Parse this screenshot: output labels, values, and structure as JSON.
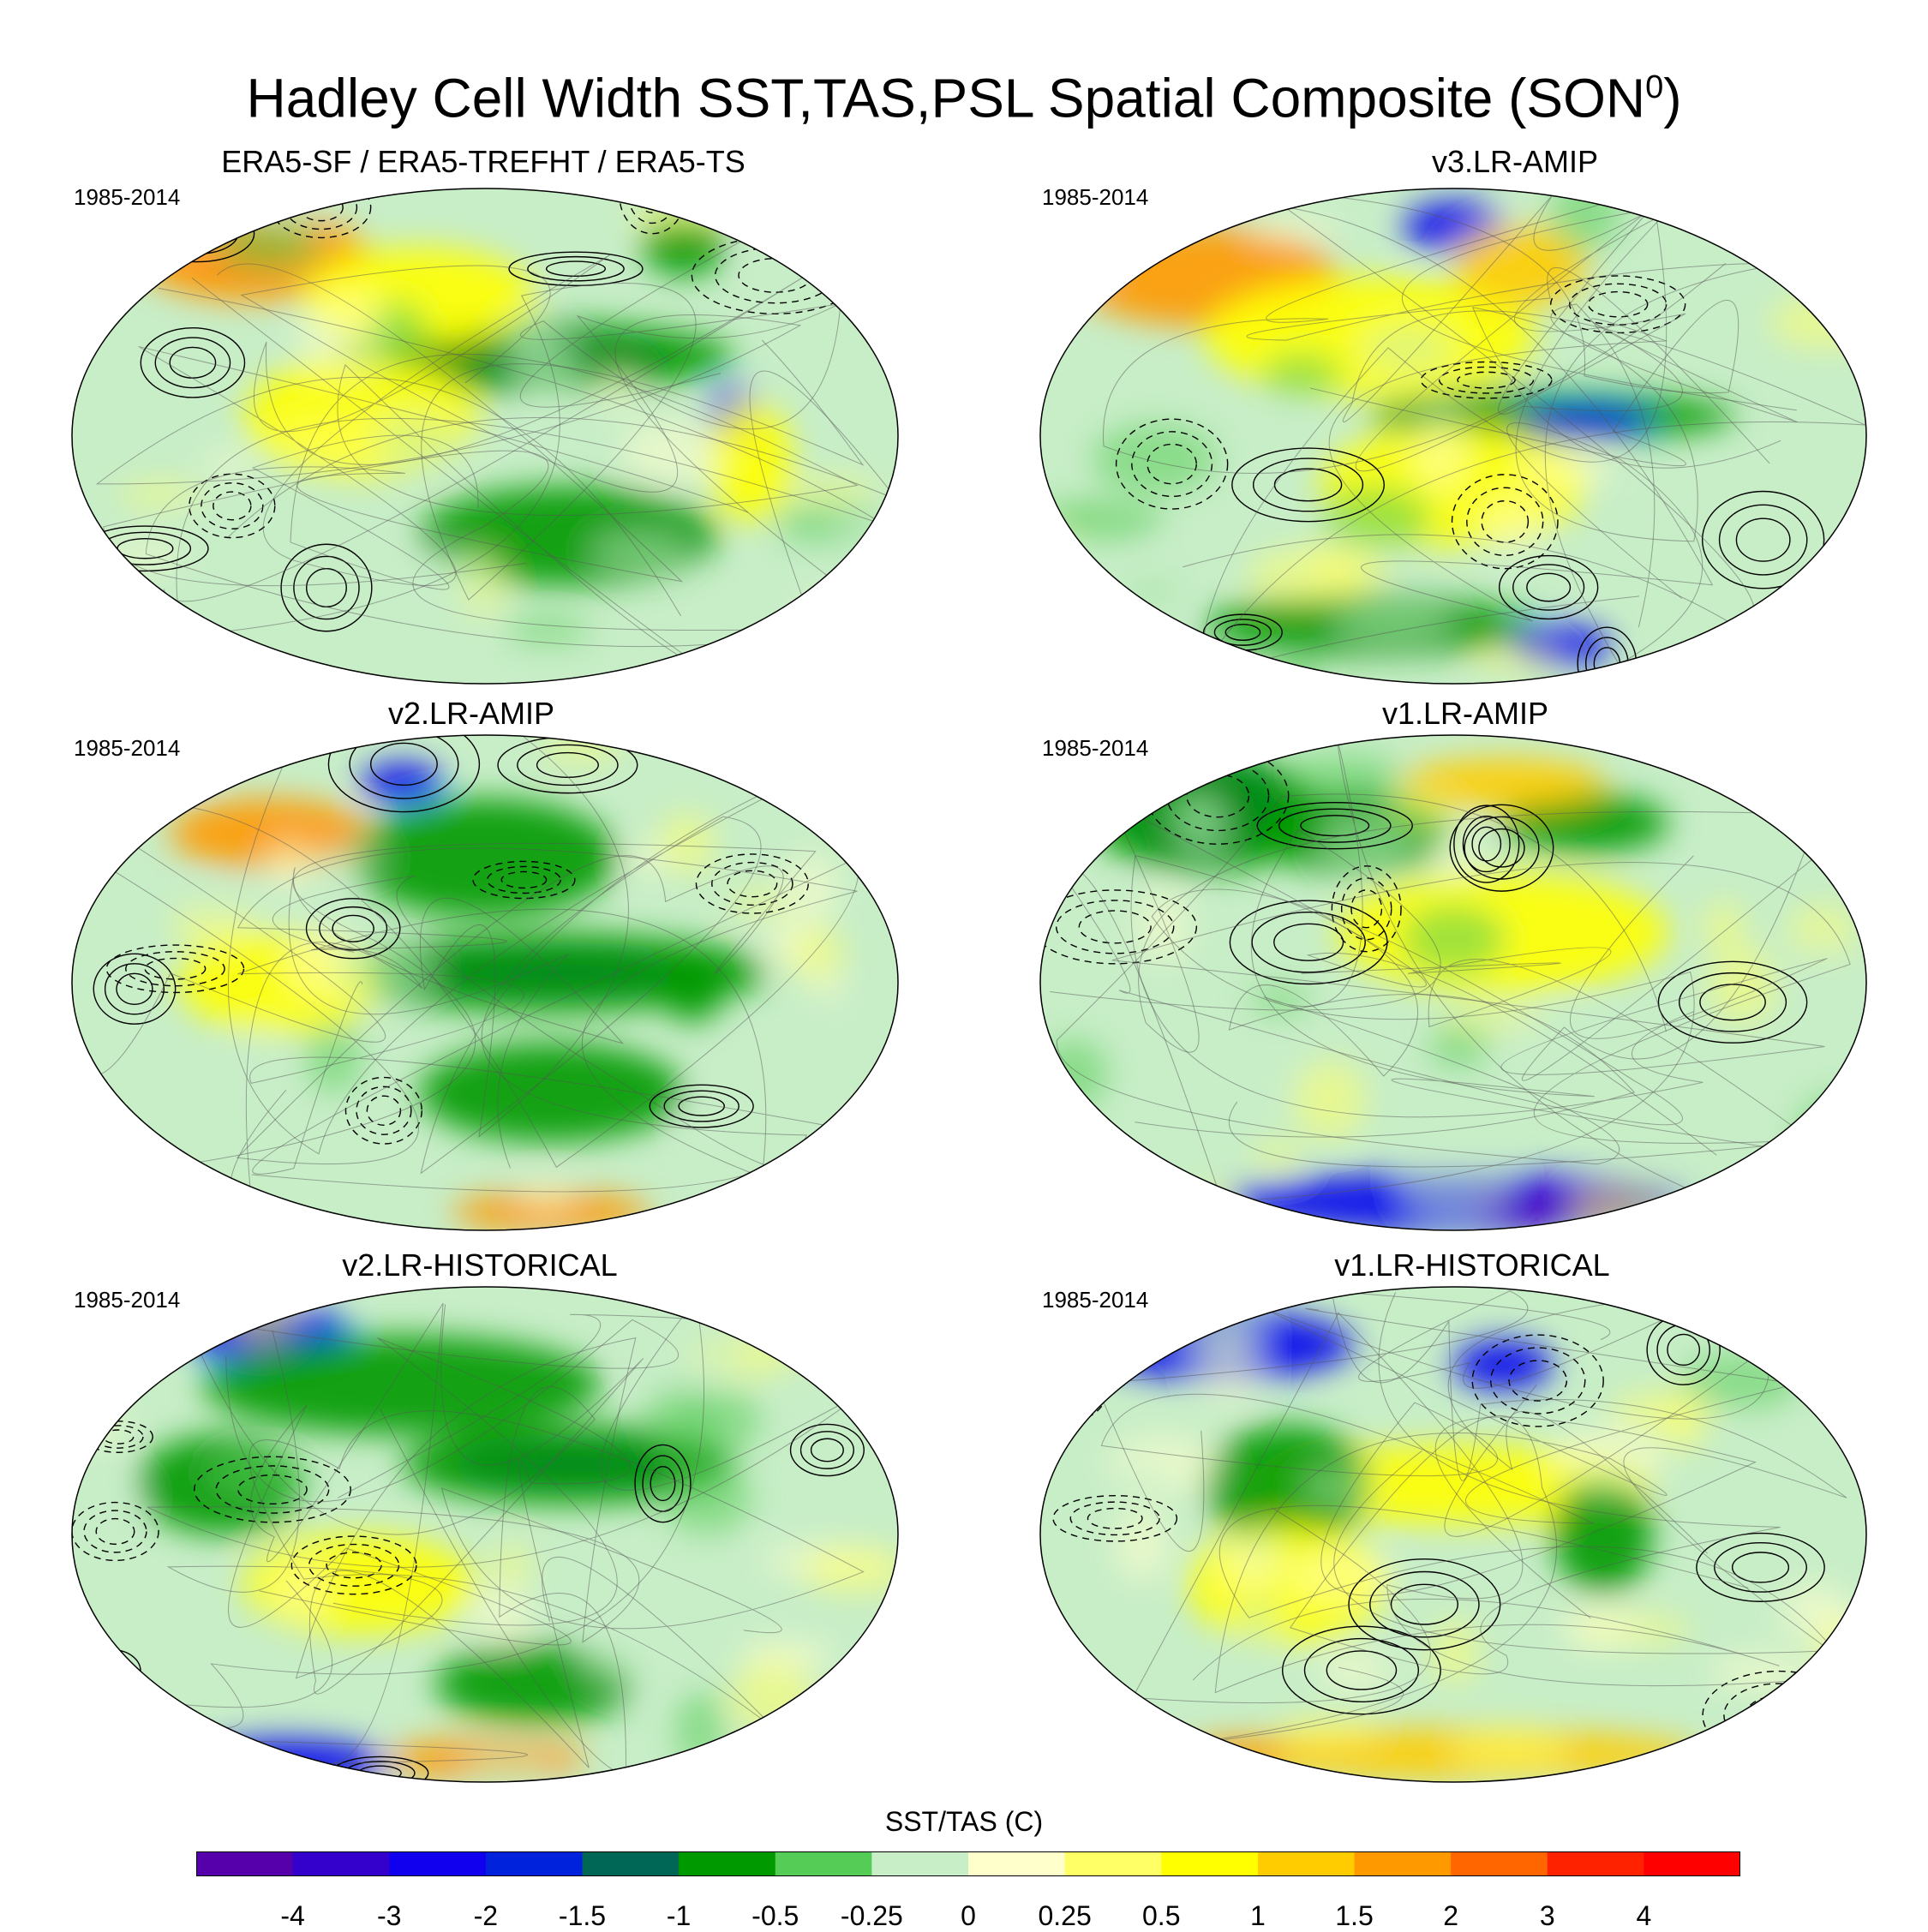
{
  "title": {
    "main": "Hadley Cell Width SST,TAS,PSL Spatial Composite (SON",
    "superscript": "0",
    "close": ")"
  },
  "panels": [
    {
      "title": "ERA5-SF / ERA5-TREFHT / ERA5-TS",
      "period": "1985-2014",
      "patches": [
        [
          "#0000ee",
          0.56,
          0.34,
          0.16,
          0.04
        ],
        [
          "#009900",
          0.56,
          0.34,
          0.24,
          0.07
        ],
        [
          "#ff2200",
          0.2,
          0.12,
          0.08,
          0.06
        ],
        [
          "#ff9900",
          0.22,
          0.14,
          0.14,
          0.09
        ],
        [
          "#ffff00",
          0.42,
          0.22,
          0.14,
          0.1
        ],
        [
          "#009900",
          0.6,
          0.7,
          0.18,
          0.1
        ],
        [
          "#ffff00",
          0.35,
          0.46,
          0.14,
          0.12
        ],
        [
          "#0000ee",
          0.8,
          0.46,
          0.03,
          0.06
        ],
        [
          "#ffff00",
          0.82,
          0.55,
          0.05,
          0.12
        ],
        [
          "#009900",
          0.74,
          0.12,
          0.05,
          0.06
        ]
      ]
    },
    {
      "title": "v3.LR-AMIP",
      "period": "1985-2014",
      "patches": [
        [
          "#ff9900",
          0.2,
          0.18,
          0.16,
          0.1
        ],
        [
          "#0000ee",
          0.5,
          0.08,
          0.06,
          0.05
        ],
        [
          "#009900",
          0.62,
          0.46,
          0.22,
          0.05
        ],
        [
          "#0000ee",
          0.66,
          0.47,
          0.08,
          0.03
        ],
        [
          "#ffff00",
          0.4,
          0.3,
          0.2,
          0.12
        ],
        [
          "#ffff00",
          0.5,
          0.6,
          0.16,
          0.12
        ],
        [
          "#009900",
          0.4,
          0.88,
          0.2,
          0.06
        ],
        [
          "#0000ee",
          0.63,
          0.92,
          0.06,
          0.04
        ],
        [
          "#ffcc00",
          0.58,
          0.16,
          0.08,
          0.08
        ]
      ]
    },
    {
      "title": "v2.LR-AMIP",
      "period": "1985-2014",
      "patches": [
        [
          "#0000ee",
          0.58,
          0.48,
          0.18,
          0.04
        ],
        [
          "#009900",
          0.58,
          0.48,
          0.26,
          0.08
        ],
        [
          "#ff9900",
          0.24,
          0.2,
          0.12,
          0.07
        ],
        [
          "#0000ee",
          0.4,
          0.1,
          0.05,
          0.04
        ],
        [
          "#009900",
          0.5,
          0.25,
          0.16,
          0.12
        ],
        [
          "#009900",
          0.58,
          0.72,
          0.16,
          0.1
        ],
        [
          "#ff9900",
          0.58,
          0.96,
          0.12,
          0.04
        ],
        [
          "#ffff00",
          0.25,
          0.5,
          0.12,
          0.1
        ],
        [
          "#009900",
          0.75,
          0.5,
          0.04,
          0.08
        ]
      ]
    },
    {
      "title": "v1.LR-AMIP",
      "period": "1985-2014",
      "patches": [
        [
          "#0000ee",
          0.2,
          0.14,
          0.1,
          0.1
        ],
        [
          "#009900",
          0.2,
          0.16,
          0.14,
          0.12
        ],
        [
          "#0000ee",
          0.5,
          0.94,
          0.28,
          0.06
        ],
        [
          "#5500bb",
          0.62,
          0.95,
          0.1,
          0.03
        ],
        [
          "#ffff00",
          0.56,
          0.4,
          0.2,
          0.12
        ],
        [
          "#009900",
          0.38,
          0.2,
          0.12,
          0.08
        ],
        [
          "#009900",
          0.66,
          0.18,
          0.1,
          0.06
        ],
        [
          "#ffcc00",
          0.56,
          0.1,
          0.12,
          0.05
        ]
      ]
    },
    {
      "title": "v2.LR-HISTORICAL",
      "period": "1985-2014",
      "patches": [
        [
          "#0000ee",
          0.24,
          0.1,
          0.1,
          0.06
        ],
        [
          "#009900",
          0.4,
          0.2,
          0.24,
          0.1
        ],
        [
          "#0000ee",
          0.6,
          0.36,
          0.14,
          0.04
        ],
        [
          "#009900",
          0.6,
          0.36,
          0.2,
          0.08
        ],
        [
          "#0000ee",
          0.26,
          0.96,
          0.12,
          0.05
        ],
        [
          "#ff9900",
          0.5,
          0.95,
          0.12,
          0.04
        ],
        [
          "#ffff00",
          0.35,
          0.6,
          0.14,
          0.1
        ],
        [
          "#009900",
          0.56,
          0.8,
          0.12,
          0.08
        ],
        [
          "#009900",
          0.18,
          0.4,
          0.1,
          0.1
        ]
      ]
    },
    {
      "title": "v1.LR-HISTORICAL",
      "period": "1985-2014",
      "patches": [
        [
          "#0000ee",
          0.22,
          0.12,
          0.16,
          0.07
        ],
        [
          "#0000ee",
          0.56,
          0.16,
          0.06,
          0.05
        ],
        [
          "#ffff00",
          0.5,
          0.4,
          0.24,
          0.08
        ],
        [
          "#009900",
          0.3,
          0.4,
          0.1,
          0.12
        ],
        [
          "#ffcc00",
          0.5,
          0.94,
          0.3,
          0.05
        ],
        [
          "#ff9900",
          0.24,
          0.94,
          0.06,
          0.03
        ],
        [
          "#009900",
          0.68,
          0.5,
          0.06,
          0.12
        ],
        [
          "#ffff00",
          0.3,
          0.6,
          0.12,
          0.12
        ]
      ]
    }
  ],
  "colorbar": {
    "label": "SST/TAS (C)",
    "colors": [
      "#5500aa",
      "#3300cc",
      "#1100ee",
      "#0022dd",
      "#006655",
      "#009900",
      "#55cc55",
      "#c8eec8",
      "#ffffcc",
      "#ffff66",
      "#ffff00",
      "#ffcc00",
      "#ff9900",
      "#ff6600",
      "#ff2200",
      "#ff0000"
    ],
    "ticks": [
      "-4",
      "-3",
      "-2",
      "-1.5",
      "-1",
      "-0.5",
      "-0.25",
      "0",
      "0.25",
      "0.5",
      "1",
      "1.5",
      "2",
      "3",
      "4"
    ]
  }
}
